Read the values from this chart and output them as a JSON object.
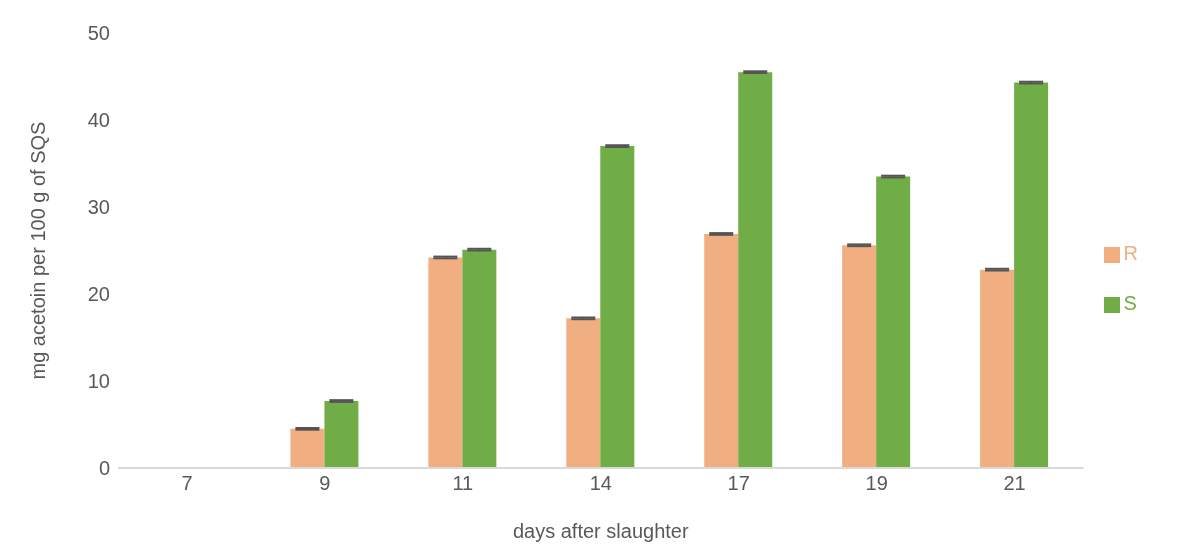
{
  "chart_data": {
    "type": "bar",
    "xlabel": "days after slaughter",
    "ylabel": "mg acetoin per 100 g of SQS",
    "categories": [
      "7",
      "9",
      "11",
      "14",
      "17",
      "19",
      "21"
    ],
    "series": [
      {
        "name": "R",
        "color": "#f1ae80",
        "values": [
          0,
          4.5,
          24.2,
          17.2,
          26.9,
          25.6,
          22.8
        ],
        "errors": [
          null,
          0.1,
          0.1,
          0.1,
          0.1,
          0.1,
          0.1
        ]
      },
      {
        "name": "S",
        "color": "#70ad47",
        "values": [
          0,
          7.7,
          25.1,
          37.0,
          45.5,
          33.5,
          44.3
        ],
        "errors": [
          null,
          0.1,
          0.1,
          0.1,
          0.1,
          0.1,
          0.1
        ]
      }
    ],
    "ylim": [
      0,
      50
    ],
    "yticks": [
      0,
      10,
      20,
      30,
      40,
      50
    ],
    "grid": false,
    "legend": "right"
  }
}
